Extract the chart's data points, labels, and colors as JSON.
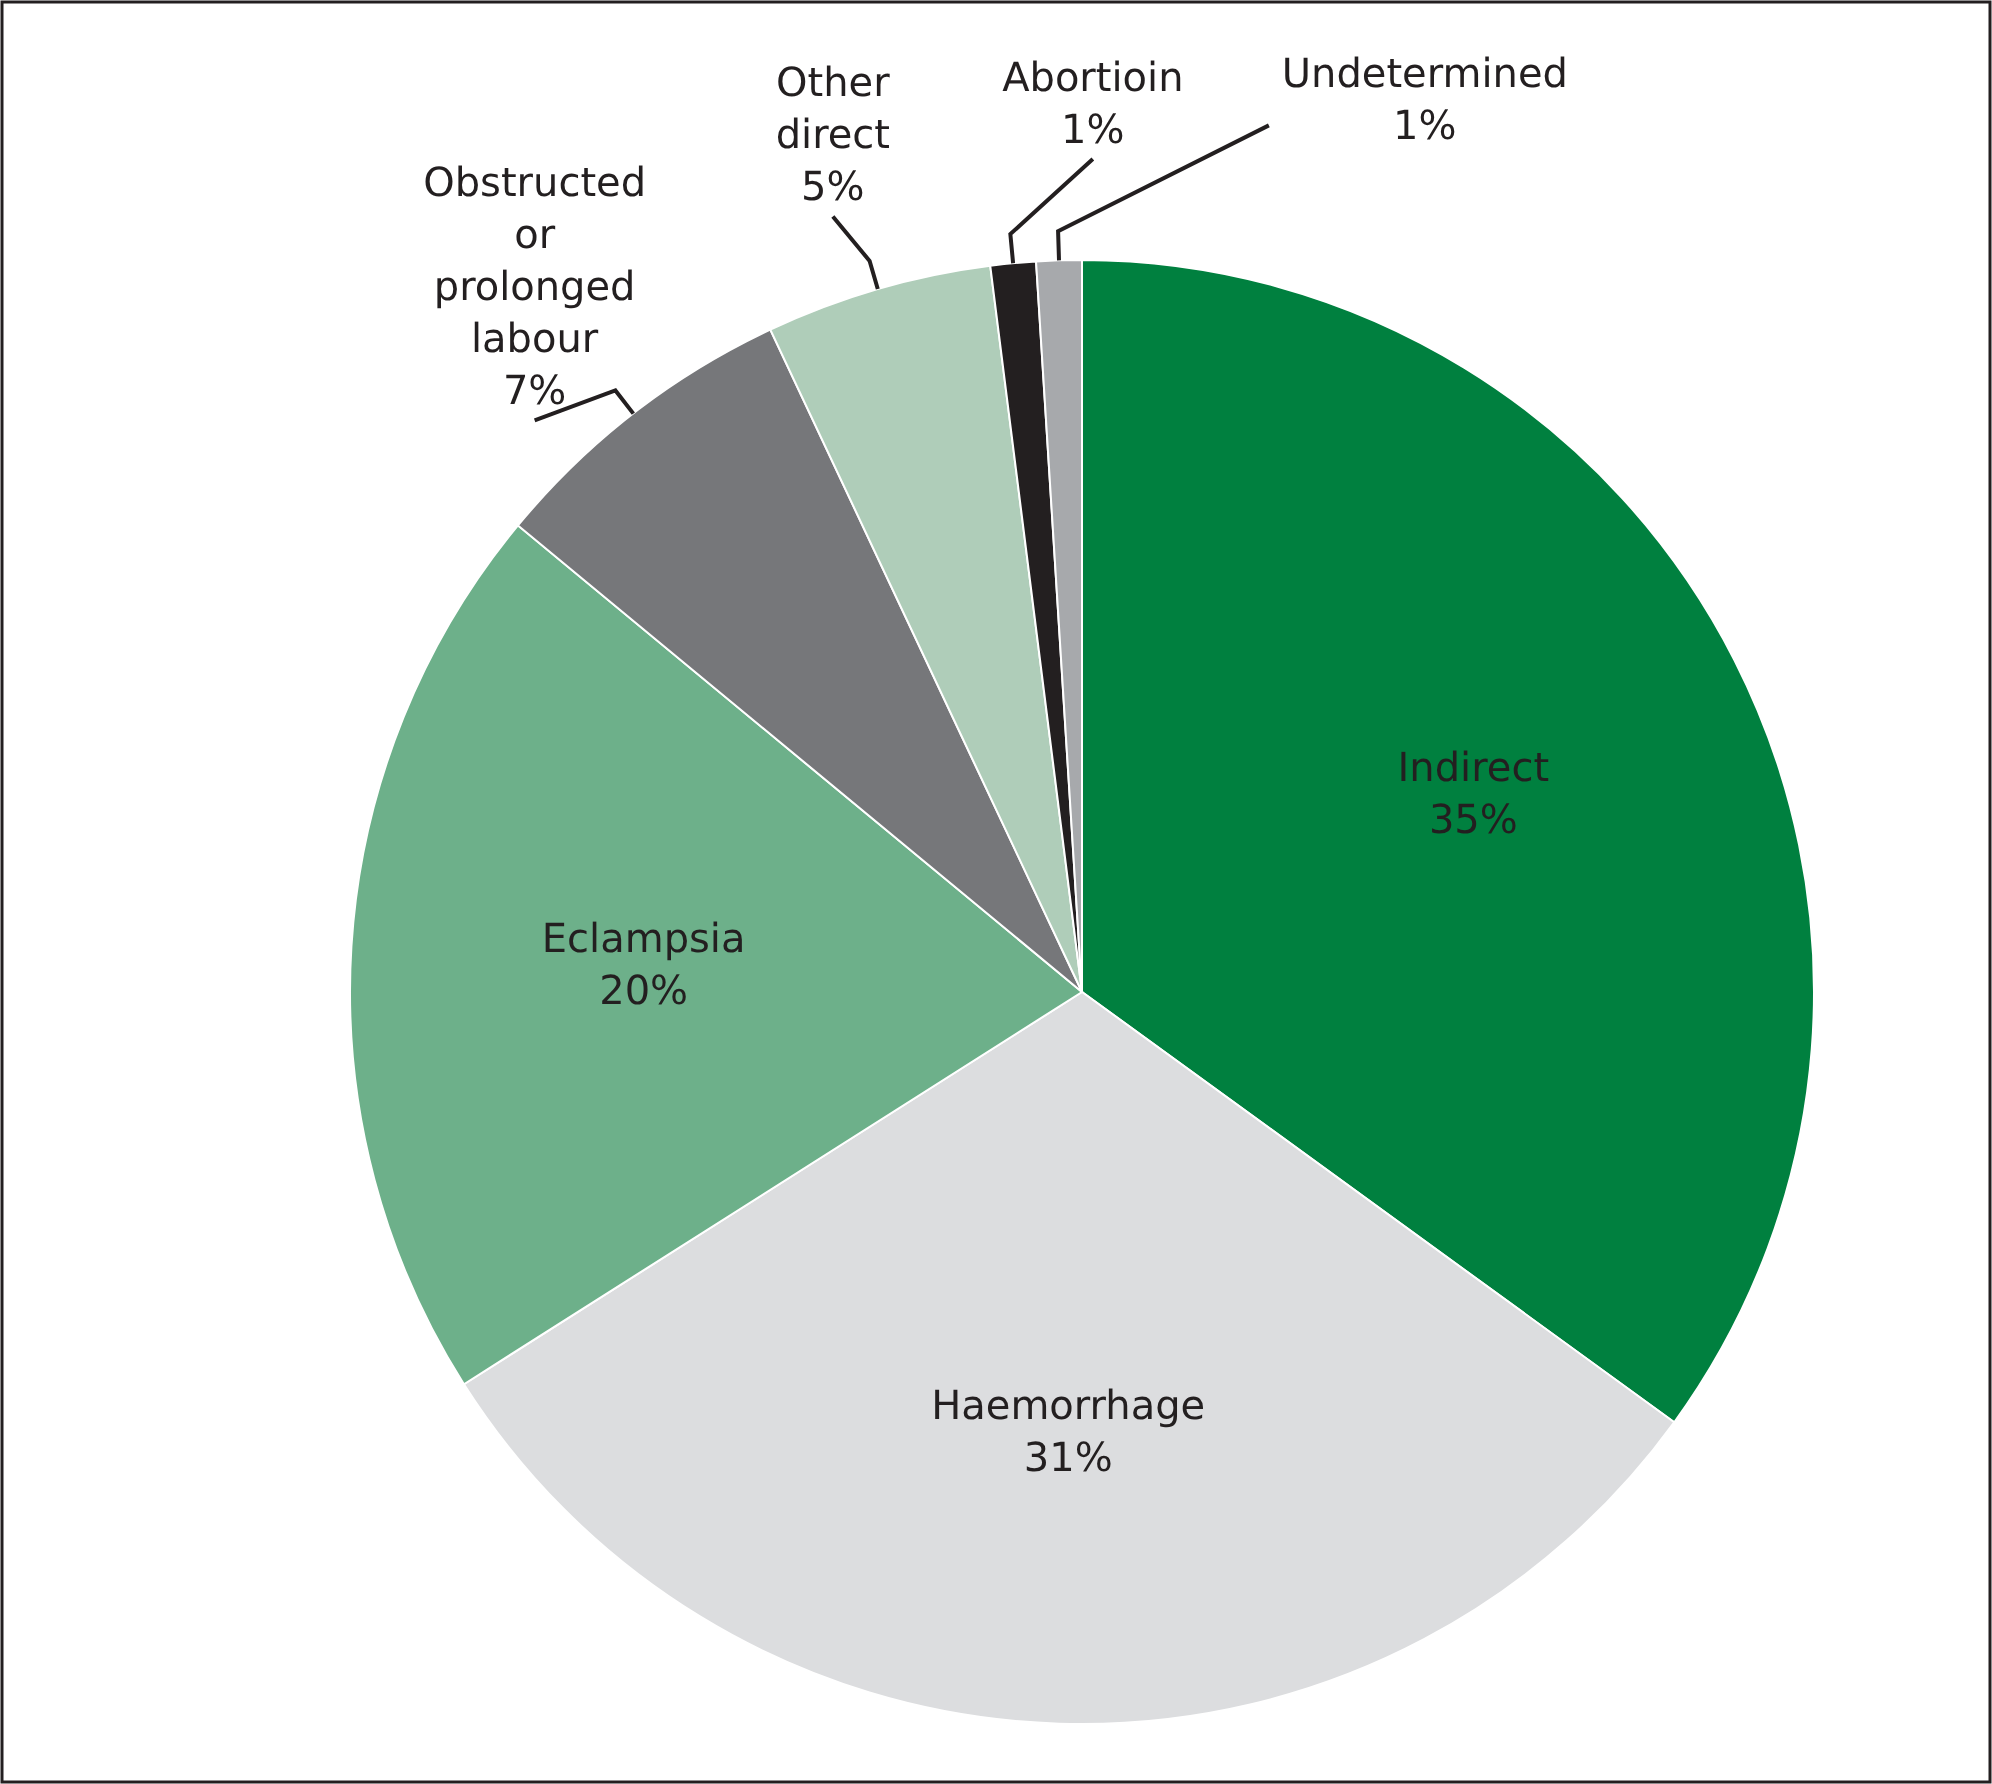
{
  "chart_data": {
    "type": "pie",
    "categories": [
      "Indirect",
      "Haemorrhage",
      "Eclampsia",
      "Obstructed or prolonged labour",
      "Other direct",
      "Abortioin",
      "Undetermined"
    ],
    "values": [
      35,
      31,
      20,
      7,
      5,
      1,
      1
    ],
    "colors": [
      "#00803f",
      "#dcdddf",
      "#6db08a",
      "#76777a",
      "#afcdb9",
      "#231f20",
      "#a7a9ac"
    ],
    "value_labels": [
      "35%",
      "31%",
      "20%",
      "7%",
      "5%",
      "1%",
      "1%"
    ]
  }
}
